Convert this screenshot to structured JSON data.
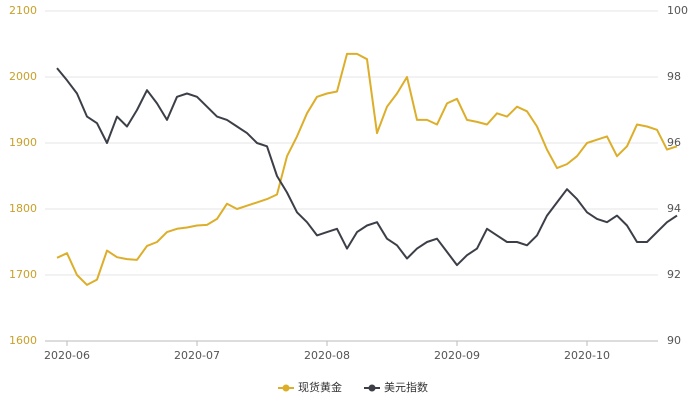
{
  "chart_data": {
    "type": "line",
    "categories": [
      null,
      "2020-06",
      null,
      null,
      null,
      null,
      null,
      null,
      null,
      null,
      null,
      null,
      null,
      null,
      "2020-07",
      null,
      null,
      null,
      null,
      null,
      null,
      null,
      null,
      null,
      null,
      null,
      null,
      "2020-08",
      null,
      null,
      null,
      null,
      null,
      null,
      null,
      null,
      null,
      null,
      null,
      null,
      "2020-09",
      null,
      null,
      null,
      null,
      null,
      null,
      null,
      null,
      null,
      null,
      null,
      null,
      "2020-10",
      null,
      null,
      null,
      null,
      null,
      null,
      null,
      null,
      null
    ],
    "series": [
      {
        "name": "现货黄金",
        "color": "#dcae2a",
        "values": [
          1726,
          1733,
          1700,
          1685,
          1693,
          1737,
          1727,
          1724,
          1723,
          1744,
          1750,
          1765,
          1770,
          1772,
          1775,
          1776,
          1785,
          1808,
          1800,
          1805,
          1810,
          1815,
          1822,
          1880,
          1910,
          1945,
          1970,
          1975,
          1978,
          2035,
          2035,
          2027,
          1915,
          1955,
          1975,
          2000,
          1935,
          1935,
          1928,
          1960,
          1967,
          1935,
          1932,
          1928,
          1945,
          1940,
          1955,
          1948,
          1925,
          1890,
          1862,
          1868,
          1880,
          1900,
          1905,
          1910,
          1880,
          1895,
          1928,
          1925,
          1920,
          1890,
          1895
        ]
      },
      {
        "name": "美元指数",
        "color": "#3c3f48",
        "axis": "y2",
        "values": [
          98.27,
          97.9,
          97.5,
          96.8,
          96.6,
          96.0,
          96.8,
          96.5,
          97.0,
          97.6,
          97.2,
          96.7,
          97.4,
          97.5,
          97.4,
          97.1,
          96.8,
          96.7,
          96.5,
          96.3,
          96.0,
          95.9,
          95.0,
          94.5,
          93.9,
          93.6,
          93.2,
          93.3,
          93.4,
          92.8,
          93.3,
          93.5,
          93.6,
          93.1,
          92.9,
          92.5,
          92.8,
          93.0,
          93.1,
          92.7,
          92.3,
          92.6,
          92.8,
          93.4,
          93.2,
          93.0,
          93.0,
          92.9,
          93.2,
          93.8,
          94.2,
          94.6,
          94.3,
          93.9,
          93.7,
          93.6,
          93.8,
          93.5,
          93.0,
          93.0,
          93.3,
          93.6,
          93.8
        ]
      }
    ],
    "ylim": [
      1600,
      2100
    ],
    "yticks": [
      1600,
      1700,
      1800,
      1900,
      2000,
      2100
    ],
    "y2lim": [
      90,
      100
    ],
    "y2ticks": [
      90,
      92,
      94,
      96,
      98,
      100
    ],
    "grid": true,
    "legend": "bottom"
  }
}
